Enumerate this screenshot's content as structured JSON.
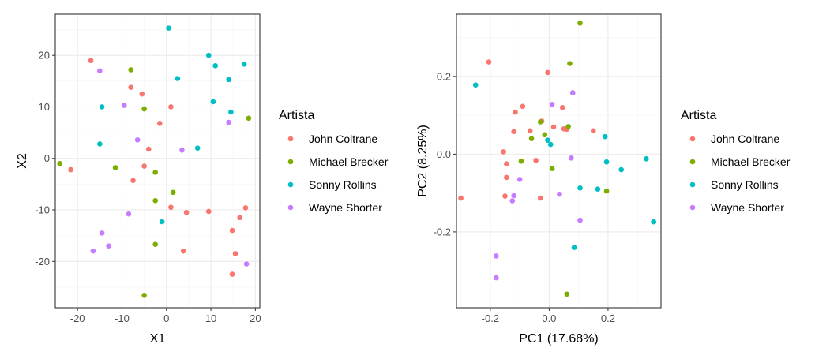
{
  "chart_data": [
    {
      "type": "scatter",
      "xlabel": "X1",
      "ylabel": "X2",
      "xlim": [
        -25,
        21
      ],
      "ylim": [
        -29,
        28
      ],
      "xticks": [
        -20,
        -10,
        0,
        10,
        20
      ],
      "yticks": [
        -20,
        -10,
        0,
        10,
        20
      ],
      "xtick_labels": [
        "-20",
        "-10",
        "0",
        "10",
        "20"
      ],
      "ytick_labels": [
        "-20",
        "-10",
        "0",
        "10",
        "20"
      ],
      "grid": true,
      "legend": {
        "title": "Artista",
        "position": "right"
      },
      "series": [
        {
          "name": "John Coltrane",
          "color": "#F8766D",
          "points": [
            [
              -17,
              19
            ],
            [
              -8,
              13.8
            ],
            [
              -5.5,
              12.5
            ],
            [
              1,
              10
            ],
            [
              -1.5,
              6.8
            ],
            [
              -4,
              1.8
            ],
            [
              -5,
              -1.5
            ],
            [
              -7.5,
              -4.3
            ],
            [
              -21.5,
              -2.2
            ],
            [
              1,
              -9.5
            ],
            [
              4.5,
              -10.5
            ],
            [
              9.5,
              -10.3
            ],
            [
              16.5,
              -11.5
            ],
            [
              17.8,
              -9.6
            ],
            [
              14.8,
              -14
            ],
            [
              3.8,
              -18
            ],
            [
              15.5,
              -18.5
            ],
            [
              14.8,
              -22.5
            ]
          ]
        },
        {
          "name": "Michael Brecker",
          "color": "#7CAE00",
          "points": [
            [
              -8,
              17.2
            ],
            [
              -5,
              9.6
            ],
            [
              18.5,
              7.8
            ],
            [
              -24,
              -1
            ],
            [
              -11.5,
              -1.8
            ],
            [
              -2.5,
              -2.7
            ],
            [
              -2.5,
              -8.2
            ],
            [
              1.5,
              -6.6
            ],
            [
              -2.5,
              -16.7
            ],
            [
              -5,
              -26.6
            ]
          ]
        },
        {
          "name": "Sonny Rollins",
          "color": "#00BFC4",
          "points": [
            [
              0.5,
              25.3
            ],
            [
              9.5,
              20
            ],
            [
              17.5,
              18.3
            ],
            [
              11,
              18
            ],
            [
              2.5,
              15.5
            ],
            [
              14,
              15.3
            ],
            [
              -14.5,
              10
            ],
            [
              10.5,
              11
            ],
            [
              14.5,
              9
            ],
            [
              -15,
              2.8
            ],
            [
              7,
              2
            ],
            [
              -1,
              -12.3
            ]
          ]
        },
        {
          "name": "Wayne Shorter",
          "color": "#C77CFF",
          "points": [
            [
              -15,
              17
            ],
            [
              -9.5,
              10.3
            ],
            [
              14,
              7
            ],
            [
              -6.5,
              3.6
            ],
            [
              3.5,
              1.6
            ],
            [
              -8.5,
              -10.8
            ],
            [
              -14.5,
              -14.5
            ],
            [
              -13,
              -17
            ],
            [
              -16.5,
              -18
            ],
            [
              18,
              -20.5
            ]
          ]
        }
      ]
    },
    {
      "type": "scatter",
      "xlabel": "PC1 (17.68%)",
      "ylabel": "PC2 (8.25%)",
      "xlim": [
        -0.315,
        0.38
      ],
      "ylim": [
        -0.395,
        0.36
      ],
      "xticks": [
        -0.2,
        0,
        0.2
      ],
      "yticks": [
        -0.2,
        0,
        0.2
      ],
      "xtick_labels": [
        "-0.2",
        "0.0",
        "0.2"
      ],
      "ytick_labels": [
        "-0.2",
        "0.0",
        "0.2"
      ],
      "grid": true,
      "legend": {
        "title": "Artista",
        "position": "right"
      },
      "series": [
        {
          "name": "John Coltrane",
          "color": "#F8766D",
          "points": [
            [
              -0.3,
              -0.113
            ],
            [
              -0.205,
              0.237
            ],
            [
              -0.005,
              0.21
            ],
            [
              -0.09,
              0.123
            ],
            [
              -0.115,
              0.108
            ],
            [
              -0.12,
              0.058
            ],
            [
              -0.065,
              0.06
            ],
            [
              -0.025,
              0.085
            ],
            [
              0.045,
              0.12
            ],
            [
              0.05,
              0.065
            ],
            [
              0.06,
              0.064
            ],
            [
              0.15,
              0.06
            ],
            [
              0.015,
              0.07
            ],
            [
              -0.155,
              0.006
            ],
            [
              -0.145,
              -0.025
            ],
            [
              -0.145,
              -0.06
            ],
            [
              -0.15,
              -0.108
            ],
            [
              -0.045,
              -0.016
            ],
            [
              -0.03,
              -0.113
            ]
          ]
        },
        {
          "name": "Michael Brecker",
          "color": "#7CAE00",
          "points": [
            [
              0.105,
              0.337
            ],
            [
              0.07,
              0.233
            ],
            [
              -0.03,
              0.083
            ],
            [
              -0.015,
              0.05
            ],
            [
              0.065,
              0.071
            ],
            [
              -0.06,
              0.04
            ],
            [
              -0.095,
              -0.018
            ],
            [
              0.01,
              -0.037
            ],
            [
              0.195,
              -0.095
            ],
            [
              0.06,
              -0.36
            ]
          ]
        },
        {
          "name": "Sonny Rollins",
          "color": "#00BFC4",
          "points": [
            [
              -0.25,
              0.178
            ],
            [
              0.08,
              0.158
            ],
            [
              -0.005,
              0.036
            ],
            [
              0.005,
              0.025
            ],
            [
              0.19,
              0.045
            ],
            [
              0.195,
              -0.02
            ],
            [
              0.245,
              -0.04
            ],
            [
              0.33,
              -0.012
            ],
            [
              0.355,
              -0.174
            ],
            [
              0.105,
              -0.087
            ],
            [
              0.165,
              -0.09
            ],
            [
              0.085,
              -0.24
            ]
          ]
        },
        {
          "name": "Wayne Shorter",
          "color": "#C77CFF",
          "points": [
            [
              0.08,
              0.158
            ],
            [
              0.01,
              0.128
            ],
            [
              0.075,
              -0.01
            ],
            [
              -0.1,
              -0.065
            ],
            [
              -0.12,
              -0.107
            ],
            [
              -0.125,
              -0.12
            ],
            [
              0.035,
              -0.103
            ],
            [
              0.105,
              -0.17
            ],
            [
              -0.18,
              -0.262
            ],
            [
              -0.18,
              -0.318
            ]
          ]
        }
      ]
    }
  ]
}
